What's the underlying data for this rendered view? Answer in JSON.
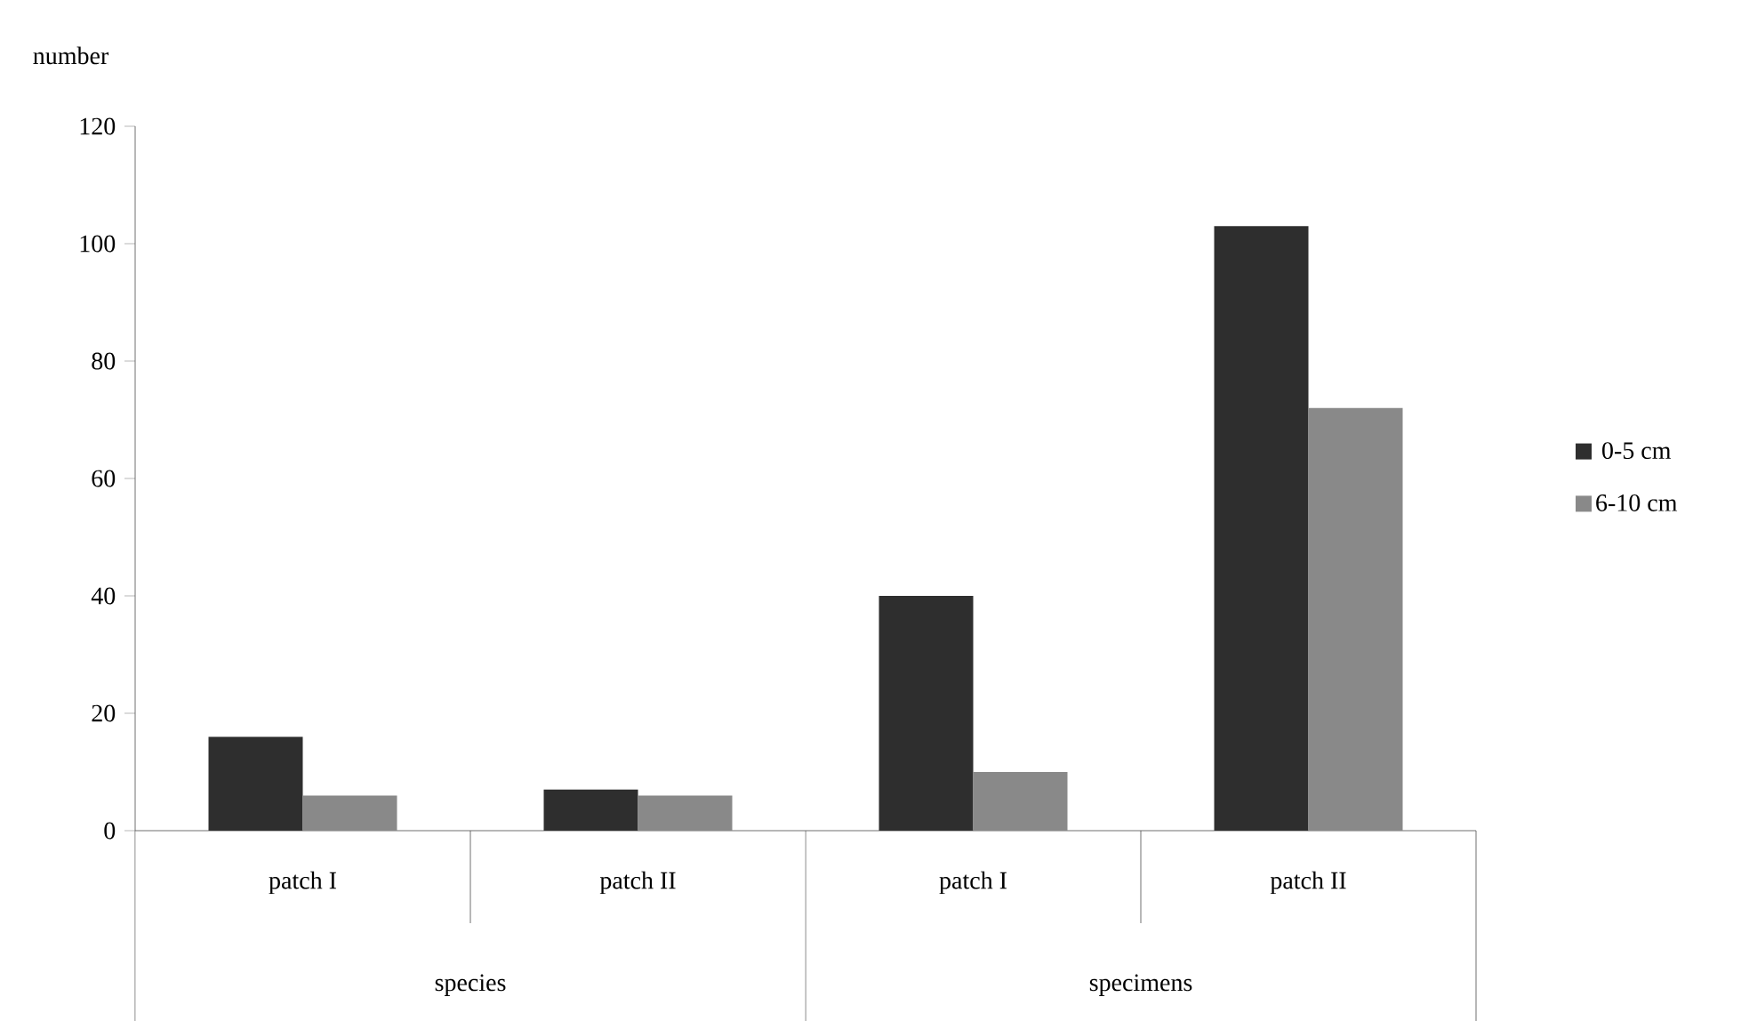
{
  "chart_data": {
    "type": "bar",
    "ylabel": "number",
    "categories": [
      "patch I",
      "patch II",
      "patch I",
      "patch II"
    ],
    "annotations": [
      "species",
      "specimens"
    ],
    "series": [
      {
        "name": "0-5 cm",
        "color": "#2e2e2e",
        "values": [
          16,
          7,
          40,
          103
        ]
      },
      {
        "name": "6-10 cm",
        "color": "#898989",
        "values": [
          6,
          6,
          10,
          72
        ]
      }
    ],
    "ylim": [
      0,
      120
    ],
    "yticks": [
      0,
      20,
      40,
      60,
      80,
      100,
      120
    ],
    "legend": "right"
  }
}
